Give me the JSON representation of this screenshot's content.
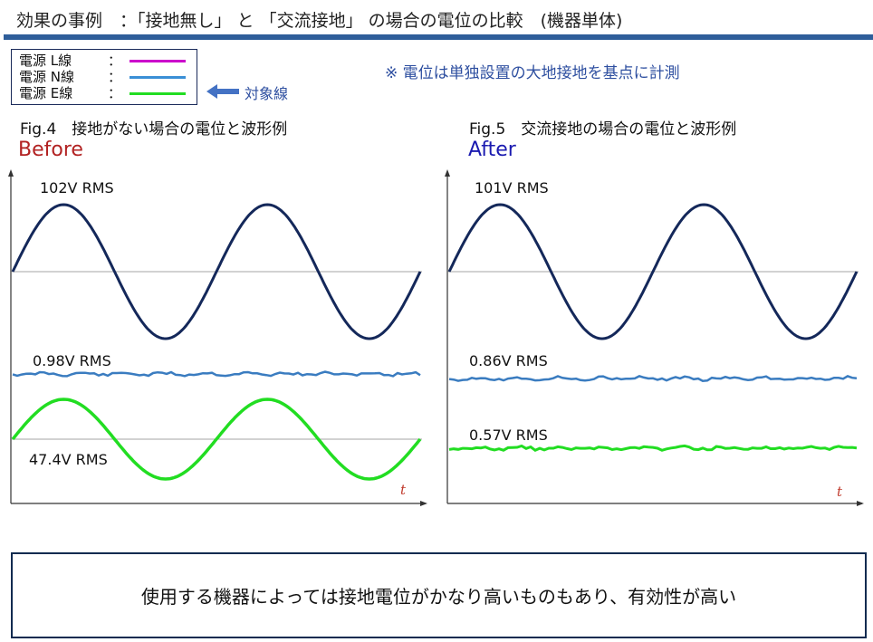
{
  "header": {
    "title": "効果の事例　：「接地無し」 と 「交流接地」 の場合の電位の比較　(機器単体)"
  },
  "legend": {
    "items": [
      {
        "label": "電源 L線",
        "colon": "：",
        "color": "#cc00cc"
      },
      {
        "label": "電源 N線",
        "colon": "：",
        "color": "#3a8fd6"
      },
      {
        "label": "電源 E線",
        "colon": "：",
        "color": "#22dd22"
      }
    ],
    "arrow_label": "対象線",
    "arrow_color": "#4472c4"
  },
  "note": "※ 電位は単独設置の大地接地を基点に計測",
  "figures": [
    {
      "fig_label": "Fig.4　接地がない場合の電位と波形例",
      "state": "Before",
      "state_color": "#b22222",
      "l_rms": "102V RMS",
      "n_rms": "0.98V RMS",
      "e_rms": "47.4V RMS",
      "t_label": "t"
    },
    {
      "fig_label": "Fig.5　交流接地の場合の電位と波形例",
      "state": "After",
      "state_color": "#1a1ab0",
      "l_rms": "101V RMS",
      "n_rms": "0.86V RMS",
      "e_rms": "0.57V RMS",
      "t_label": "t"
    }
  ],
  "colors": {
    "l_wave": "#14285a",
    "n_wave": "#3a7cc0",
    "e_wave": "#22dd22",
    "axis": "#333333",
    "zero_line": "#888888"
  },
  "conclusion": "使用する機器によっては接地電位がかなり高いものもあり、有効性が高い"
}
